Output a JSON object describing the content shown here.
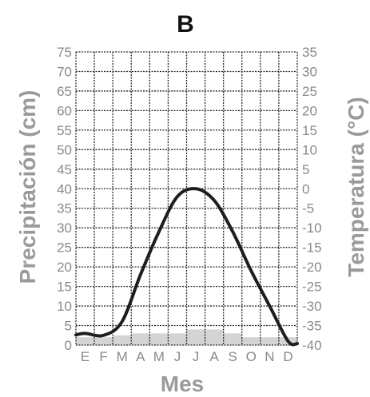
{
  "chart_data": {
    "type": "line",
    "title": "B",
    "xlabel": "Mes",
    "ylabel_left": "Precipitación (cm)",
    "ylabel_right": "Temperatura (°C)",
    "categories": [
      "E",
      "F",
      "M",
      "A",
      "M",
      "J",
      "J",
      "A",
      "S",
      "O",
      "N",
      "D"
    ],
    "left_axis": {
      "ticks": [
        0,
        5,
        10,
        15,
        20,
        25,
        30,
        35,
        40,
        45,
        50,
        55,
        60,
        65,
        70,
        75
      ],
      "ylim": [
        0,
        75
      ]
    },
    "right_axis": {
      "ticks": [
        -40,
        -35,
        -30,
        -25,
        -20,
        -15,
        -10,
        -5,
        0,
        5,
        10,
        15,
        20,
        25,
        30,
        35
      ],
      "ylim": [
        -40,
        35
      ]
    },
    "grid": true,
    "series": [
      {
        "kind": "bar",
        "axis": "left",
        "values": [
          2,
          2,
          2.5,
          3,
          3,
          3,
          4,
          4,
          3,
          2,
          2,
          2
        ]
      },
      {
        "kind": "line",
        "axis": "right",
        "values": [
          -37,
          -37.5,
          -34,
          -22,
          -11,
          -2,
          0,
          -3,
          -11,
          -21,
          -30,
          -39
        ]
      }
    ]
  }
}
